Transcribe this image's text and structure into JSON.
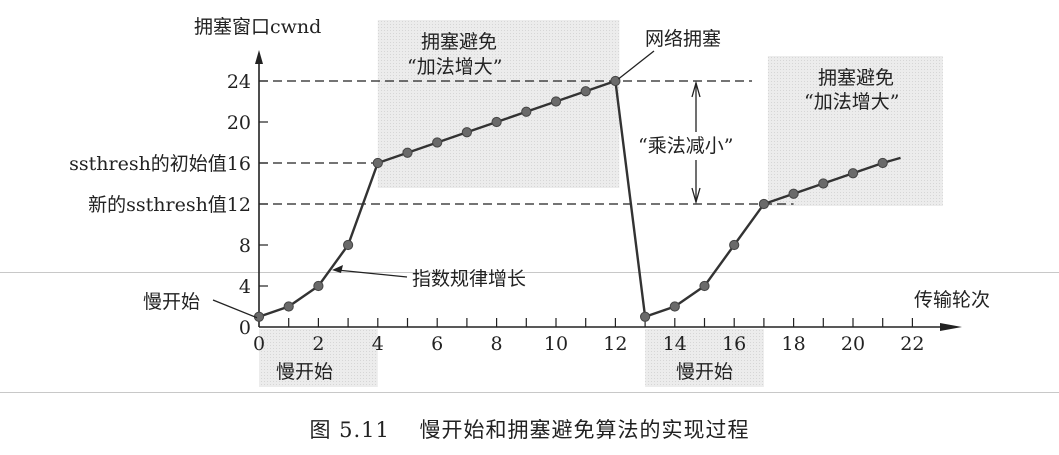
{
  "chart_data": {
    "type": "line",
    "title": "",
    "xlabel": "传输轮次",
    "ylabel": "拥塞窗口cwnd",
    "xlim": [
      0,
      23
    ],
    "ylim": [
      0,
      26
    ],
    "x_ticks": [
      0,
      2,
      4,
      6,
      8,
      10,
      12,
      14,
      16,
      18,
      20,
      22
    ],
    "y_ticks": [
      {
        "value": 0,
        "label": "0"
      },
      {
        "value": 4,
        "label": "4"
      },
      {
        "value": 8,
        "label": "8"
      },
      {
        "value": 12,
        "label": "新的ssthresh值12"
      },
      {
        "value": 16,
        "label": "ssthresh的初始值16"
      },
      {
        "value": 20,
        "label": "20"
      },
      {
        "value": 24,
        "label": "24"
      }
    ],
    "grid": false,
    "series": [
      {
        "name": "cwnd",
        "x": [
          0,
          1,
          2,
          3,
          4,
          5,
          6,
          7,
          8,
          9,
          10,
          11,
          12,
          13,
          14,
          15,
          16,
          17,
          18,
          19,
          20,
          21
        ],
        "values": [
          1,
          2,
          4,
          8,
          16,
          17,
          18,
          19,
          20,
          21,
          22,
          23,
          24,
          1,
          2,
          4,
          8,
          12,
          13,
          14,
          15,
          16
        ]
      }
    ],
    "reference_lines": [
      {
        "y": 24,
        "style": "dashed"
      },
      {
        "y": 16,
        "style": "dashed"
      },
      {
        "y": 12,
        "style": "dashed"
      }
    ],
    "annotations": [
      {
        "text": "慢开始",
        "target": [
          0,
          1
        ]
      },
      {
        "text": "指数规律增长",
        "target": [
          2.4,
          5.5
        ]
      },
      {
        "text": "网络拥塞",
        "target": [
          12,
          24
        ]
      },
      {
        "text": "“乘法减小”",
        "range_y": [
          12,
          24
        ]
      },
      {
        "text": "拥塞避免",
        "sub": "“加法增大”",
        "region_x": [
          4,
          12
        ]
      },
      {
        "text": "拥塞避免",
        "sub": "“加法增大”",
        "region_x": [
          17,
          22
        ]
      },
      {
        "text": "慢开始",
        "region_x": [
          0,
          4
        ],
        "position": "below-axis"
      },
      {
        "text": "慢开始",
        "region_x": [
          13,
          17
        ],
        "position": "below-axis"
      }
    ]
  },
  "labels": {
    "y_axis_title": "拥塞窗口cwnd",
    "x_axis_title": "传输轮次",
    "slow_start_left": "慢开始",
    "exp_growth": "指数规律增长",
    "network_congestion": "网络拥塞",
    "mult_decrease": "“乘法减小”",
    "ca_title_1": "拥塞避免",
    "ca_sub_1": "“加法增大”",
    "ca_title_2": "拥塞避免",
    "ca_sub_2": "“加法增大”",
    "ss_band_1": "慢开始",
    "ss_band_2": "慢开始"
  },
  "caption": "图 5.11　 慢开始和拥塞避免算法的实现过程"
}
